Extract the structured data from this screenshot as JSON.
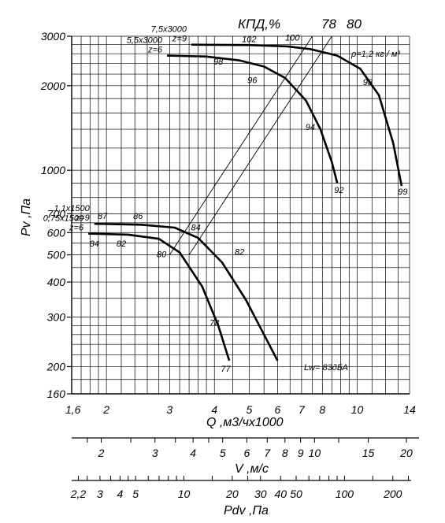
{
  "chart_data": {
    "type": "line",
    "title": "КПД,%",
    "top_efficiency_labels": [
      "78",
      "80"
    ],
    "density_note": "ρ=1,2 кг / м³",
    "xlabel": "Q ,м3/чх1000",
    "ylabel": "Pv ,Па",
    "x_scale": "log",
    "y_scale": "log",
    "xlim": [
      1.6,
      14
    ],
    "ylim": [
      160,
      3000
    ],
    "x_ticks": [
      "1,6",
      "2",
      "3",
      "4",
      "5",
      "6",
      "7",
      "8",
      "10",
      "14"
    ],
    "y_ticks": [
      "160",
      "200",
      "300",
      "400",
      "500",
      "600",
      "700",
      "1000",
      "2000",
      "3000"
    ],
    "velocity_axis": {
      "label": "V ,м/с",
      "ticks": [
        "2",
        "3",
        "4",
        "5",
        "6",
        "7",
        "8",
        "9",
        "10",
        "15",
        "20"
      ]
    },
    "dynamic_pressure_axis": {
      "label": "Pdv ,Па",
      "ticks": [
        "2,2",
        "3",
        "4",
        "5",
        "10",
        "20",
        "30",
        "40",
        "50",
        "100",
        "200"
      ]
    },
    "series": [
      {
        "name": "7,5х3000 z=9",
        "line1": "7,5х3000",
        "line2": "z=9",
        "x": [
          3.45,
          5.0,
          6.4,
          7.4,
          8.8,
          10.2,
          11.5,
          12.6,
          13.3
        ],
        "y": [
          2800,
          2790,
          2760,
          2700,
          2560,
          2300,
          1850,
          1250,
          880
        ],
        "efficiency_marks": [
          {
            "label": "102",
            "x": 5.0,
            "y": 2860
          },
          {
            "label": "100",
            "x": 6.6,
            "y": 2900
          },
          {
            "label": "98",
            "x": 10.7,
            "y": 2010
          },
          {
            "label": "99",
            "x": 13.4,
            "y": 820
          }
        ]
      },
      {
        "name": "5,5х3000 z=6",
        "line1": "5,5х3000",
        "line2": "z=6",
        "x": [
          2.95,
          3.8,
          4.7,
          5.5,
          6.3,
          7.2,
          7.9,
          8.5,
          8.8
        ],
        "y": [
          2560,
          2540,
          2460,
          2340,
          2130,
          1770,
          1400,
          1070,
          900
        ],
        "efficiency_marks": [
          {
            "label": "98",
            "x": 4.1,
            "y": 2380
          },
          {
            "label": "96",
            "x": 5.1,
            "y": 2040
          },
          {
            "label": "94",
            "x": 7.4,
            "y": 1390
          },
          {
            "label": "92",
            "x": 8.9,
            "y": 830
          }
        ]
      },
      {
        "name": "1,1х1500 z=9",
        "line1": "1,1х1500",
        "line2": "z=9",
        "x": [
          1.85,
          2.5,
          3.1,
          3.6,
          4.2,
          4.9,
          5.5,
          6.0
        ],
        "y": [
          645,
          640,
          625,
          575,
          470,
          345,
          260,
          210
        ],
        "efficiency_marks": [
          {
            "label": "87",
            "x": 1.95,
            "y": 670
          },
          {
            "label": "86",
            "x": 2.45,
            "y": 670
          },
          {
            "label": "84",
            "x": 3.55,
            "y": 610
          },
          {
            "label": "82",
            "x": 4.7,
            "y": 500
          }
        ]
      },
      {
        "name": "0,75х1500 z=6",
        "line1": "0,75х1500",
        "line2": "z=6",
        "x": [
          1.78,
          2.3,
          2.8,
          3.2,
          3.7,
          4.1,
          4.4
        ],
        "y": [
          595,
          590,
          570,
          510,
          385,
          280,
          210
        ],
        "efficiency_marks": [
          {
            "label": "84",
            "x": 1.85,
            "y": 535
          },
          {
            "label": "82",
            "x": 2.2,
            "y": 535
          },
          {
            "label": "80",
            "x": 2.85,
            "y": 490
          },
          {
            "label": "78",
            "x": 4.0,
            "y": 280
          },
          {
            "label": "77",
            "x": 4.3,
            "y": 192
          }
        ]
      }
    ],
    "efficiency_lines": [
      {
        "label": "78",
        "from": {
          "x": 3.0,
          "y": 500
        },
        "to": {
          "x": 7.5,
          "y": 3000
        }
      },
      {
        "label": "80",
        "from": {
          "x": 3.4,
          "y": 500
        },
        "to": {
          "x": 8.5,
          "y": 3000
        }
      }
    ],
    "annotations": {
      "noise": "Lw= 83дБА"
    }
  }
}
